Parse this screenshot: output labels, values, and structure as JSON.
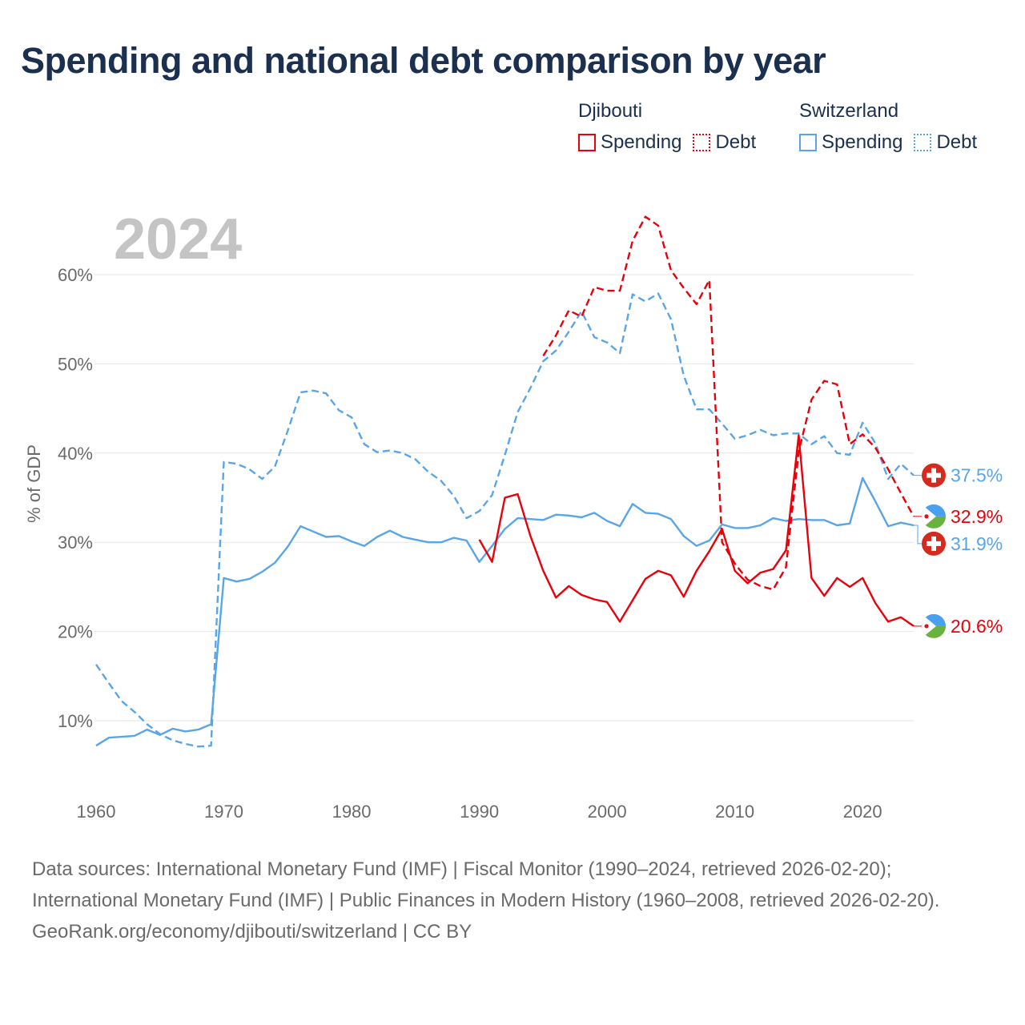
{
  "title": "Spending and national debt comparison by year",
  "legend": {
    "groups": [
      {
        "name": "Djibouti",
        "spending_label": "Spending",
        "debt_label": "Debt",
        "color": "#e8000b"
      },
      {
        "name": "Switzerland",
        "spending_label": "Spending",
        "debt_label": "Debt",
        "color": "#5aa5e6"
      }
    ]
  },
  "footer": {
    "sources": "Data sources: International Monetary Fund (IMF) | Fiscal Monitor (1990–2024, retrieved 2026-02-20); International Monetary Fund (IMF) | Public Finances in Modern History (1960–2008, retrieved 2026-02-20).",
    "credit": "GeoRank.org/economy/djibouti/switzerland | CC BY"
  },
  "chart_data": {
    "type": "line",
    "title": "Spending and national debt comparison by year",
    "year_label": "2024",
    "ylabel": "% of GDP",
    "xlabel": "",
    "xlim": [
      1960,
      2024
    ],
    "ylim": [
      3,
      68
    ],
    "x_ticks": [
      1960,
      1970,
      1980,
      1990,
      2000,
      2010,
      2020
    ],
    "y_ticks": [
      10,
      20,
      30,
      40,
      50,
      60
    ],
    "y_tick_labels": [
      "10%",
      "20%",
      "30%",
      "40%",
      "50%",
      "60%"
    ],
    "grid": true,
    "series": [
      {
        "name": "Switzerland Spending",
        "country": "Switzerland",
        "metric": "Spending",
        "color": "#5aa5e6",
        "dash": false,
        "end_label": "31.9%",
        "x": [
          1960,
          1961,
          1962,
          1963,
          1964,
          1965,
          1966,
          1967,
          1968,
          1969,
          1970,
          1971,
          1972,
          1973,
          1974,
          1975,
          1976,
          1977,
          1978,
          1979,
          1980,
          1981,
          1982,
          1983,
          1984,
          1985,
          1986,
          1987,
          1988,
          1989,
          1990,
          1991,
          1992,
          1993,
          1994,
          1995,
          1996,
          1997,
          1998,
          1999,
          2000,
          2001,
          2002,
          2003,
          2004,
          2005,
          2006,
          2007,
          2008,
          2009,
          2010,
          2011,
          2012,
          2013,
          2014,
          2015,
          2016,
          2017,
          2018,
          2019,
          2020,
          2021,
          2022,
          2023,
          2024
        ],
        "values": [
          7.2,
          8.1,
          8.2,
          8.3,
          9.0,
          8.4,
          9.1,
          8.8,
          9.0,
          9.6,
          26.0,
          25.6,
          25.9,
          26.7,
          27.7,
          29.5,
          31.8,
          31.2,
          30.6,
          30.7,
          30.1,
          29.6,
          30.6,
          31.3,
          30.6,
          30.3,
          30.0,
          30.0,
          30.5,
          30.2,
          27.8,
          29.6,
          31.5,
          32.7,
          32.6,
          32.5,
          33.1,
          33.0,
          32.8,
          33.3,
          32.4,
          31.8,
          34.3,
          33.3,
          33.2,
          32.6,
          30.7,
          29.6,
          30.2,
          32.0,
          31.6,
          31.6,
          31.9,
          32.7,
          32.4,
          32.6,
          32.5,
          32.5,
          31.9,
          32.1,
          37.2,
          34.6,
          31.8,
          32.2,
          31.9
        ]
      },
      {
        "name": "Switzerland Debt",
        "country": "Switzerland",
        "metric": "Debt",
        "color": "#5aa5e6",
        "dash": true,
        "end_label": "37.5%",
        "x": [
          1960,
          1961,
          1962,
          1963,
          1964,
          1965,
          1966,
          1967,
          1968,
          1969,
          1970,
          1971,
          1972,
          1973,
          1974,
          1975,
          1976,
          1977,
          1978,
          1979,
          1980,
          1981,
          1982,
          1983,
          1984,
          1985,
          1986,
          1987,
          1988,
          1989,
          1990,
          1991,
          1992,
          1993,
          1994,
          1995,
          1996,
          1997,
          1998,
          1999,
          2000,
          2001,
          2002,
          2003,
          2004,
          2005,
          2006,
          2007,
          2008,
          2009,
          2010,
          2011,
          2012,
          2013,
          2014,
          2015,
          2016,
          2017,
          2018,
          2019,
          2020,
          2021,
          2022,
          2023,
          2024
        ],
        "values": [
          16.3,
          14.2,
          12.2,
          11.0,
          9.6,
          8.5,
          7.8,
          7.4,
          7.1,
          7.2,
          39.0,
          38.8,
          38.2,
          37.1,
          38.5,
          42.5,
          46.8,
          47.0,
          46.7,
          44.8,
          44.0,
          41.0,
          40.1,
          40.3,
          40.0,
          39.3,
          37.9,
          36.9,
          35.2,
          32.7,
          33.5,
          35.3,
          39.8,
          44.6,
          47.3,
          50.3,
          51.5,
          53.6,
          55.9,
          53.0,
          52.4,
          51.2,
          57.8,
          57.0,
          57.9,
          55.0,
          48.7,
          44.9,
          44.9,
          43.3,
          41.6,
          42.0,
          42.6,
          42.0,
          42.2,
          42.2,
          41.0,
          41.9,
          40.0,
          39.8,
          43.4,
          41.1,
          37.1,
          38.8,
          37.5
        ]
      },
      {
        "name": "Djibouti Spending",
        "country": "Djibouti",
        "metric": "Spending",
        "color": "#e8000b",
        "dash": false,
        "end_label": "20.6%",
        "x": [
          1990,
          1991,
          1992,
          1993,
          1994,
          1995,
          1996,
          1997,
          1998,
          1999,
          2000,
          2001,
          2002,
          2003,
          2004,
          2005,
          2006,
          2007,
          2008,
          2009,
          2010,
          2011,
          2012,
          2013,
          2014,
          2015,
          2016,
          2017,
          2018,
          2019,
          2020,
          2021,
          2022,
          2023,
          2024
        ],
        "values": [
          30.3,
          27.8,
          35.0,
          35.4,
          30.7,
          26.8,
          23.8,
          25.1,
          24.1,
          23.6,
          23.3,
          21.1,
          23.5,
          25.9,
          26.8,
          26.3,
          23.9,
          26.8,
          29.0,
          31.5,
          26.8,
          25.4,
          26.6,
          27.0,
          29.1,
          42.0,
          26.0,
          24.0,
          26.0,
          25.0,
          26.0,
          23.2,
          21.1,
          21.6,
          20.6
        ]
      },
      {
        "name": "Djibouti Debt",
        "country": "Djibouti",
        "metric": "Debt",
        "color": "#e8000b",
        "dash": true,
        "end_label": "32.9%",
        "x": [
          1995,
          1996,
          1997,
          1998,
          1999,
          2000,
          2001,
          2002,
          2003,
          2004,
          2005,
          2006,
          2007,
          2008,
          2009,
          2010,
          2011,
          2012,
          2013,
          2014,
          2015,
          2016,
          2017,
          2018,
          2019,
          2020,
          2021,
          2022,
          2023,
          2024
        ],
        "values": [
          50.9,
          53.2,
          56.0,
          55.3,
          58.6,
          58.2,
          58.2,
          63.8,
          66.5,
          65.5,
          60.5,
          58.5,
          56.7,
          59.4,
          30.0,
          27.6,
          25.8,
          25.1,
          24.7,
          27.2,
          40.2,
          46.0,
          48.1,
          47.7,
          41.0,
          42.1,
          40.6,
          38.2,
          35.5,
          32.9
        ]
      }
    ]
  }
}
